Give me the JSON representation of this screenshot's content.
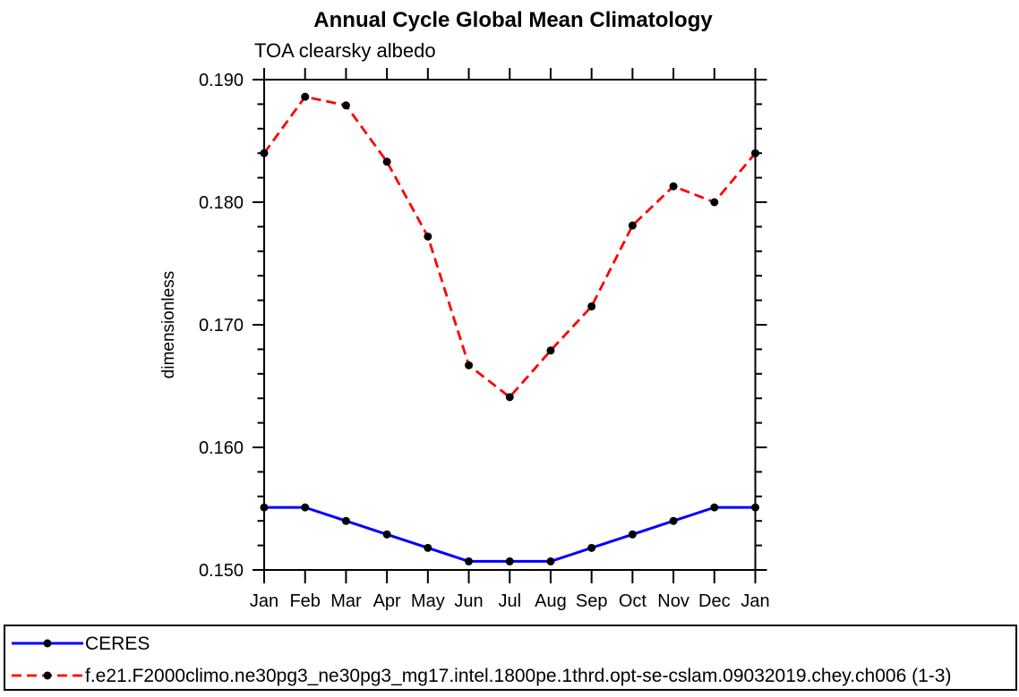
{
  "chart_data": {
    "type": "line",
    "title": "Annual Cycle Global Mean Climatology",
    "subtitle": "TOA clearsky albedo",
    "xlabel": "",
    "ylabel": "dimensionless",
    "categories": [
      "Jan",
      "Feb",
      "Mar",
      "Apr",
      "May",
      "Jun",
      "Jul",
      "Aug",
      "Sep",
      "Oct",
      "Nov",
      "Dec",
      "Jan"
    ],
    "ylim": [
      0.15,
      0.19
    ],
    "ytick_values": [
      0.15,
      0.16,
      0.17,
      0.18,
      0.19
    ],
    "ytick_labels": [
      "0.150",
      "0.160",
      "0.170",
      "0.180",
      "0.190"
    ],
    "y_minor_tick_step": 0.002,
    "grid": false,
    "legend_position": "bottom-box-full-width",
    "marker": "filled-circle",
    "marker_color": "#000000",
    "axis_color": "#000000",
    "series": [
      {
        "name": "CERES",
        "color": "#0000ff",
        "line_style": "solid",
        "values": [
          0.1551,
          0.1551,
          0.154,
          0.1529,
          0.1518,
          0.1507,
          0.1507,
          0.1507,
          0.1518,
          0.1529,
          0.154,
          0.1551,
          0.1551
        ]
      },
      {
        "name": "f.e21.F2000climo.ne30pg3_ne30pg3_mg17.intel.1800pe.1thrd.opt-se-cslam.09032019.chey.ch006 (1-3)",
        "color": "#ff0000",
        "line_style": "dashed",
        "values": [
          0.184,
          0.1886,
          0.1879,
          0.1833,
          0.1772,
          0.1667,
          0.1641,
          0.1679,
          0.1715,
          0.1781,
          0.1813,
          0.18,
          0.184
        ]
      }
    ]
  }
}
